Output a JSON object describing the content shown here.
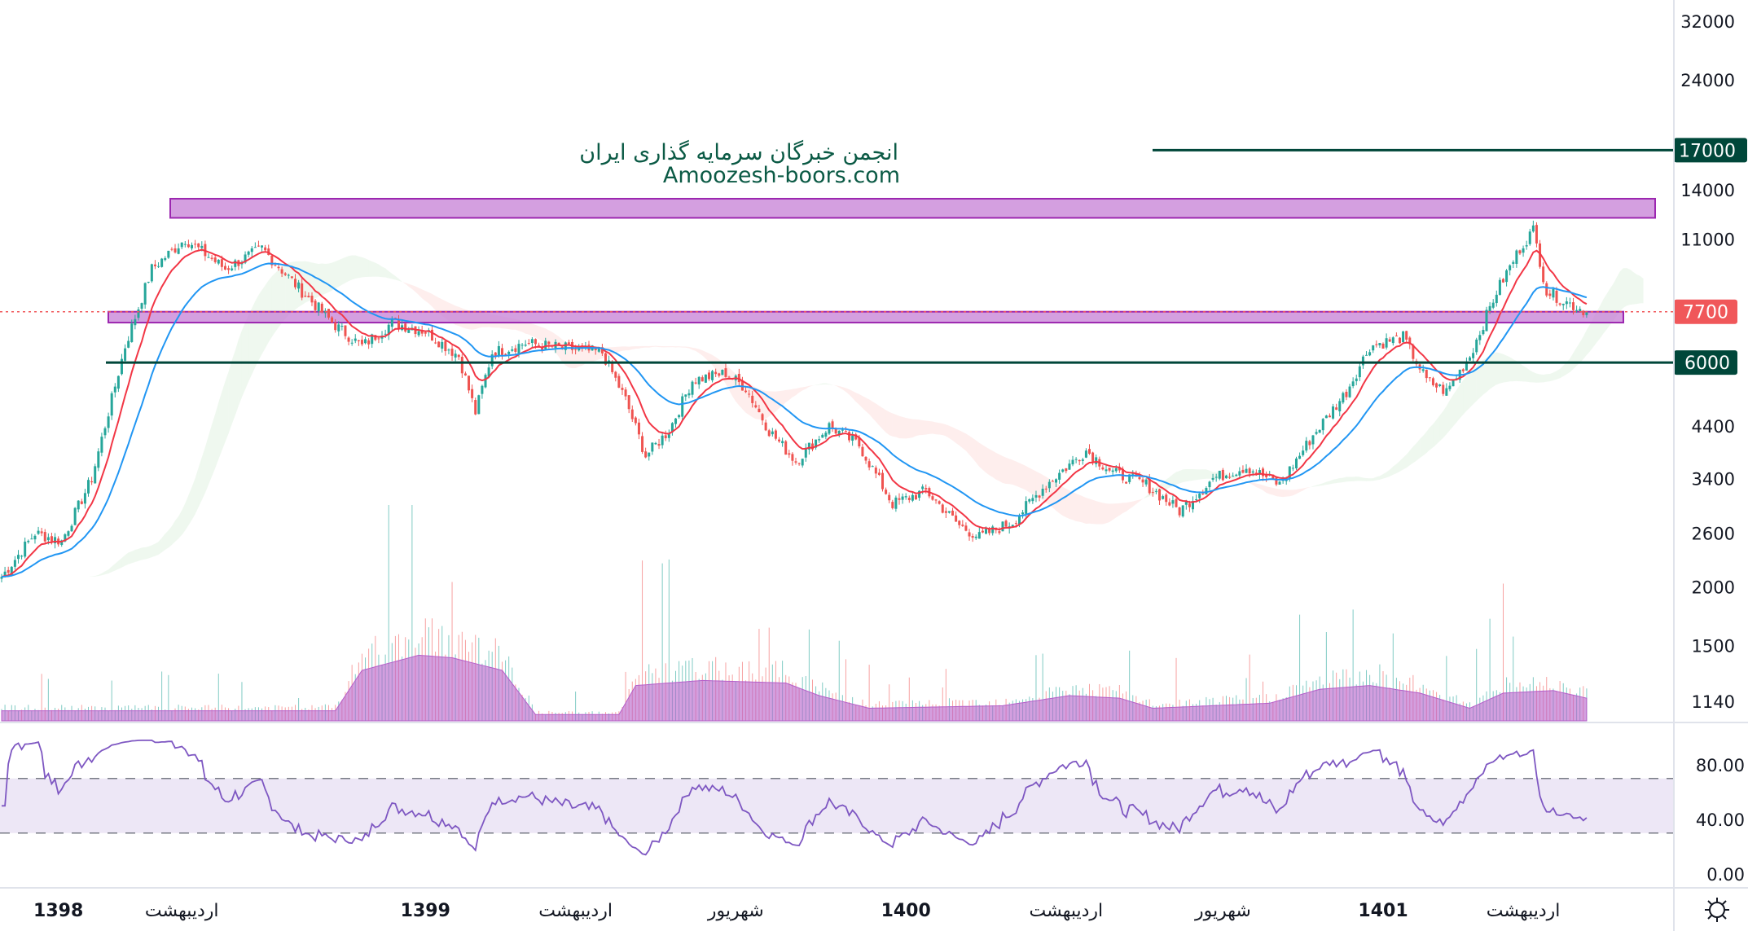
{
  "watermark": {
    "line1": "انجمن خبرگان سرمایه گذاری ایران",
    "line2": "Amoozesh-boors.com"
  },
  "settings_icon": "gear-icon",
  "colors": {
    "up": "#26a69a",
    "down": "#ef5350",
    "ema_fast": "#f23645",
    "ema_slow": "#2196f3",
    "level_line": "#00473a",
    "zone": "#c57fd6",
    "volume": "#b55fc9",
    "rsi": "#7e57c2",
    "rsi_band": "#ede7f6",
    "last_price": "#f0575a"
  },
  "chart_data": {
    "type": "candlestick",
    "price_scale": "log",
    "y_ticks": [
      32000,
      24000,
      14000,
      11000,
      4400,
      3400,
      2600,
      2000,
      1500,
      1140
    ],
    "x_labels": [
      {
        "bar": 17,
        "label": "1398"
      },
      {
        "bar": 54,
        "label": "اردیبهشت"
      },
      {
        "bar": 127,
        "label": "1399"
      },
      {
        "bar": 172,
        "label": "اردیبهشت"
      },
      {
        "bar": 220,
        "label": "شهریور"
      },
      {
        "bar": 271,
        "label": "1400"
      },
      {
        "bar": 319,
        "label": "اردیبهشت"
      },
      {
        "bar": 366,
        "label": "شهریور"
      },
      {
        "bar": 414,
        "label": "1401"
      },
      {
        "bar": 456,
        "label": "اردیبهشت"
      }
    ],
    "total_bars": 476,
    "close_keypoints": [
      [
        0,
        2100
      ],
      [
        10,
        2600
      ],
      [
        18,
        2500
      ],
      [
        27,
        3400
      ],
      [
        37,
        6500
      ],
      [
        45,
        9500
      ],
      [
        55,
        11000
      ],
      [
        67,
        9500
      ],
      [
        78,
        10500
      ],
      [
        90,
        8500
      ],
      [
        100,
        7200
      ],
      [
        108,
        6500
      ],
      [
        117,
        7300
      ],
      [
        127,
        7000
      ],
      [
        137,
        6200
      ],
      [
        142,
        4700
      ],
      [
        147,
        6300
      ],
      [
        157,
        6600
      ],
      [
        180,
        6300
      ],
      [
        187,
        5000
      ],
      [
        193,
        3800
      ],
      [
        200,
        4300
      ],
      [
        207,
        5500
      ],
      [
        217,
        5700
      ],
      [
        223,
        5300
      ],
      [
        230,
        4300
      ],
      [
        238,
        3700
      ],
      [
        248,
        4400
      ],
      [
        257,
        4000
      ],
      [
        267,
        3000
      ],
      [
        277,
        3200
      ],
      [
        287,
        2700
      ],
      [
        293,
        2550
      ],
      [
        303,
        2750
      ],
      [
        313,
        3300
      ],
      [
        325,
        3900
      ],
      [
        333,
        3500
      ],
      [
        343,
        3300
      ],
      [
        353,
        2900
      ],
      [
        363,
        3400
      ],
      [
        373,
        3600
      ],
      [
        383,
        3300
      ],
      [
        393,
        4200
      ],
      [
        403,
        5200
      ],
      [
        410,
        6500
      ],
      [
        420,
        6800
      ],
      [
        427,
        5500
      ],
      [
        433,
        5200
      ],
      [
        440,
        6200
      ],
      [
        448,
        8500
      ],
      [
        455,
        10500
      ],
      [
        459,
        11500
      ],
      [
        463,
        8500
      ],
      [
        470,
        8000
      ],
      [
        475,
        7700
      ]
    ],
    "volume_keypoints": [
      [
        0,
        8
      ],
      [
        100,
        8
      ],
      [
        108,
        40
      ],
      [
        125,
        52
      ],
      [
        135,
        50
      ],
      [
        150,
        40
      ],
      [
        160,
        5
      ],
      [
        185,
        5
      ],
      [
        190,
        28
      ],
      [
        210,
        32
      ],
      [
        235,
        30
      ],
      [
        245,
        20
      ],
      [
        260,
        10
      ],
      [
        300,
        12
      ],
      [
        320,
        20
      ],
      [
        335,
        18
      ],
      [
        345,
        10
      ],
      [
        380,
        14
      ],
      [
        395,
        25
      ],
      [
        410,
        28
      ],
      [
        425,
        22
      ],
      [
        440,
        10
      ],
      [
        450,
        22
      ],
      [
        465,
        24
      ],
      [
        475,
        18
      ]
    ],
    "horizontal_levels": [
      {
        "price": 17000,
        "label": "17000"
      },
      {
        "price": 6000,
        "label": "6000"
      }
    ],
    "zones": [
      {
        "from": 12200,
        "to": 13400
      },
      {
        "from": 7300,
        "to": 7700
      }
    ],
    "last_price": {
      "price": 7700,
      "label": "7700"
    },
    "indicators": [
      "EMA fast",
      "EMA slow",
      "Ichimoku cloud",
      "Volume",
      "RSI"
    ],
    "rsi": {
      "ticks": [
        "80.00",
        "40.00",
        "0.00"
      ],
      "upper": 70,
      "lower": 30,
      "range": [
        0,
        100
      ]
    }
  }
}
